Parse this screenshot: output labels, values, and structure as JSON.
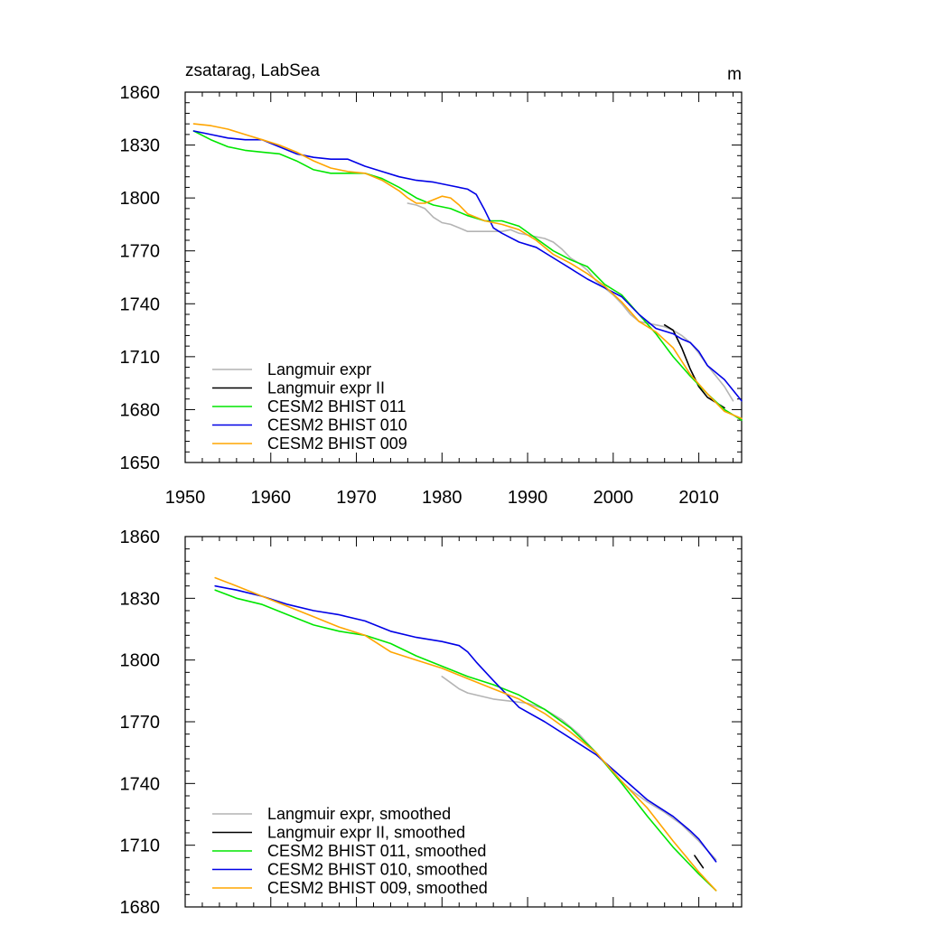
{
  "chart_data": [
    {
      "type": "line",
      "title": "zsatarag, LabSea",
      "units": "m",
      "xlim": [
        1950,
        2015
      ],
      "ylim": [
        1650,
        1860
      ],
      "xticks": [
        1950,
        1960,
        1970,
        1980,
        1990,
        2000,
        2010
      ],
      "yticks": [
        1650,
        1680,
        1710,
        1740,
        1770,
        1800,
        1830,
        1860
      ],
      "xtick_labels": [
        "1950",
        "1960",
        "1970",
        "1980",
        "1990",
        "2000",
        "2010"
      ],
      "ytick_labels": [
        "1650",
        "1680",
        "1710",
        "1740",
        "1770",
        "1800",
        "1830",
        "1860"
      ],
      "legend_position": "bottom-left",
      "series": [
        {
          "name": "Langmuir expr",
          "color": "#b4b4b4",
          "x": [
            1976,
            1977,
            1978,
            1979,
            1980,
            1981,
            1982,
            1983,
            1984,
            1985,
            1986,
            1987,
            1988,
            1989,
            1990,
            1991,
            1992,
            1993,
            1994,
            1995,
            1996,
            1997,
            1998,
            1999,
            2000,
            2001,
            2002,
            2003,
            2004,
            2005,
            2006,
            2007,
            2008,
            2009,
            2010,
            2011,
            2012,
            2013,
            2014
          ],
          "y": [
            1797,
            1796,
            1794,
            1789,
            1786,
            1785,
            1783,
            1781,
            1781,
            1781,
            1781,
            1781,
            1782,
            1780,
            1779,
            1778,
            1777,
            1775,
            1771,
            1766,
            1763,
            1759,
            1753,
            1749,
            1745,
            1740,
            1734,
            1730,
            1729,
            1728,
            1727,
            1725,
            1722,
            1718,
            1712,
            1705,
            1699,
            1693,
            1685
          ]
        },
        {
          "name": "Langmuir expr II",
          "color": "#000000",
          "x": [
            2006,
            2007,
            2008,
            2009,
            2010,
            2011,
            2012,
            2013
          ],
          "y": [
            1728,
            1725,
            1715,
            1703,
            1693,
            1687,
            1684,
            1681
          ]
        },
        {
          "name": "CESM2 BHIST 011",
          "color": "#00e600",
          "x": [
            1951,
            1953,
            1955,
            1957,
            1959,
            1961,
            1963,
            1965,
            1967,
            1969,
            1971,
            1973,
            1975,
            1977,
            1979,
            1981,
            1983,
            1985,
            1987,
            1989,
            1991,
            1993,
            1995,
            1997,
            1999,
            2001,
            2003,
            2005,
            2007,
            2009,
            2011,
            2013,
            2015
          ],
          "y": [
            1838,
            1833,
            1829,
            1827,
            1826,
            1825,
            1821,
            1816,
            1814,
            1814,
            1814,
            1811,
            1806,
            1800,
            1796,
            1794,
            1790,
            1787,
            1787,
            1784,
            1777,
            1770,
            1765,
            1761,
            1751,
            1745,
            1734,
            1723,
            1710,
            1699,
            1689,
            1680,
            1674
          ]
        },
        {
          "name": "CESM2 BHIST 010",
          "color": "#0000e6",
          "x": [
            1951,
            1953,
            1955,
            1957,
            1959,
            1961,
            1963,
            1965,
            1967,
            1969,
            1971,
            1973,
            1975,
            1977,
            1979,
            1981,
            1983,
            1984,
            1985,
            1986,
            1987,
            1989,
            1991,
            1993,
            1995,
            1997,
            1999,
            2001,
            2003,
            2005,
            2007,
            2008,
            2009,
            2010,
            2011,
            2013,
            2015
          ],
          "y": [
            1838,
            1836,
            1834,
            1833,
            1833,
            1829,
            1825,
            1823,
            1822,
            1822,
            1818,
            1815,
            1812,
            1810,
            1809,
            1807,
            1805,
            1802,
            1793,
            1783,
            1780,
            1775,
            1772,
            1766,
            1760,
            1754,
            1749,
            1744,
            1734,
            1726,
            1723,
            1720,
            1718,
            1713,
            1705,
            1697,
            1685
          ]
        },
        {
          "name": "CESM2 BHIST 009",
          "color": "#ffa500",
          "x": [
            1951,
            1953,
            1955,
            1957,
            1959,
            1961,
            1963,
            1965,
            1967,
            1969,
            1971,
            1973,
            1975,
            1976,
            1977,
            1978,
            1979,
            1980,
            1981,
            1982,
            1983,
            1985,
            1987,
            1989,
            1991,
            1993,
            1995,
            1997,
            1999,
            2001,
            2003,
            2005,
            2007,
            2009,
            2011,
            2013,
            2015
          ],
          "y": [
            1842,
            1841,
            1839,
            1836,
            1833,
            1830,
            1826,
            1821,
            1817,
            1815,
            1814,
            1810,
            1804,
            1800,
            1797,
            1797,
            1799,
            1801,
            1800,
            1796,
            1791,
            1787,
            1785,
            1782,
            1776,
            1768,
            1763,
            1757,
            1750,
            1741,
            1730,
            1724,
            1715,
            1700,
            1689,
            1679,
            1675
          ]
        }
      ]
    },
    {
      "type": "line",
      "title": "",
      "xlim": [
        1950,
        2015
      ],
      "ylim": [
        1680,
        1860
      ],
      "xticks": [
        1950,
        1960,
        1970,
        1980,
        1990,
        2000,
        2010
      ],
      "yticks": [
        1680,
        1710,
        1740,
        1770,
        1800,
        1830,
        1860
      ],
      "ytick_labels": [
        "1680",
        "1710",
        "1740",
        "1770",
        "1800",
        "1830",
        "1860"
      ],
      "legend_position": "bottom-left",
      "series": [
        {
          "name": "Langmuir expr, smoothed",
          "color": "#b4b4b4",
          "x": [
            1980,
            1981,
            1982,
            1983,
            1984,
            1986,
            1988,
            1990,
            1992,
            1994,
            1996,
            1998,
            2000,
            2002,
            2004,
            2006,
            2008,
            2010,
            2012
          ],
          "y": [
            1792,
            1789,
            1786,
            1784,
            1783,
            1781,
            1780,
            1779,
            1776,
            1771,
            1764,
            1755,
            1745,
            1737,
            1731,
            1726,
            1720,
            1712,
            1703
          ]
        },
        {
          "name": "Langmuir expr II, smoothed",
          "color": "#000000",
          "x": [
            2009.5,
            2010.5
          ],
          "y": [
            1705,
            1699
          ]
        },
        {
          "name": "CESM2 BHIST 011, smoothed",
          "color": "#00e600",
          "x": [
            1953.5,
            1956,
            1959,
            1962,
            1965,
            1968,
            1971,
            1974,
            1977,
            1980,
            1983,
            1986,
            1989,
            1992,
            1995,
            1998,
            2001,
            2004,
            2007,
            2010,
            2012
          ],
          "y": [
            1834,
            1830,
            1827,
            1822,
            1817,
            1814,
            1812,
            1808,
            1802,
            1797,
            1792,
            1788,
            1783,
            1776,
            1767,
            1755,
            1740,
            1724,
            1709,
            1696,
            1688
          ]
        },
        {
          "name": "CESM2 BHIST 010, smoothed",
          "color": "#0000e6",
          "x": [
            1953.5,
            1956,
            1959,
            1962,
            1965,
            1968,
            1971,
            1974,
            1977,
            1980,
            1982,
            1983,
            1984,
            1986,
            1989,
            1992,
            1995,
            1998,
            2001,
            2004,
            2007,
            2009,
            2010,
            2012
          ],
          "y": [
            1836,
            1834,
            1831,
            1827,
            1824,
            1822,
            1819,
            1814,
            1811,
            1809,
            1807,
            1804,
            1799,
            1790,
            1777,
            1770,
            1762,
            1754,
            1743,
            1732,
            1724,
            1717,
            1713,
            1702
          ]
        },
        {
          "name": "CESM2 BHIST 009, smoothed",
          "color": "#ffa500",
          "x": [
            1953.5,
            1956,
            1959,
            1962,
            1965,
            1968,
            1971,
            1974,
            1977,
            1980,
            1983,
            1986,
            1989,
            1992,
            1995,
            1998,
            2001,
            2004,
            2007,
            2010,
            2012
          ],
          "y": [
            1840,
            1836,
            1831,
            1826,
            1821,
            1816,
            1812,
            1804,
            1800,
            1796,
            1791,
            1786,
            1781,
            1774,
            1765,
            1755,
            1741,
            1728,
            1712,
            1697,
            1688
          ]
        }
      ]
    }
  ]
}
